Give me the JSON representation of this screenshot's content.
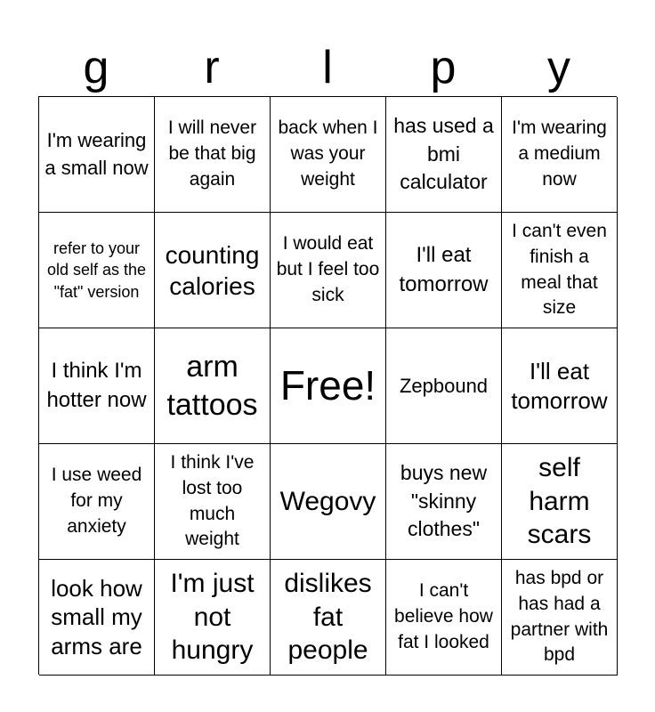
{
  "header": {
    "letters": [
      "g",
      "r",
      "l",
      "p",
      "y"
    ]
  },
  "cells": [
    "I'm wearing a small now",
    "I will never be that big again",
    "back when I was your weight",
    "has used a bmi calculator",
    "I'm wearing a medium now",
    "refer to your old self as the \"fat\" version",
    "counting calories",
    "I would eat but I feel too sick",
    "I'll eat tomorrow",
    "I can't even finish a meal that size",
    "I think I'm hotter now",
    "arm tattoos",
    "Free!",
    "Zepbound",
    "I'll eat tomorrow",
    "I use weed for my anxiety",
    "I think I've lost too much weight",
    "Wegovy",
    "buys new \"skinny clothes\"",
    "self harm scars",
    "look how small my arms are",
    "I'm just not hungry",
    "dislikes fat people",
    "I can't believe how fat I looked",
    "has bpd or has had a partner with bpd"
  ]
}
